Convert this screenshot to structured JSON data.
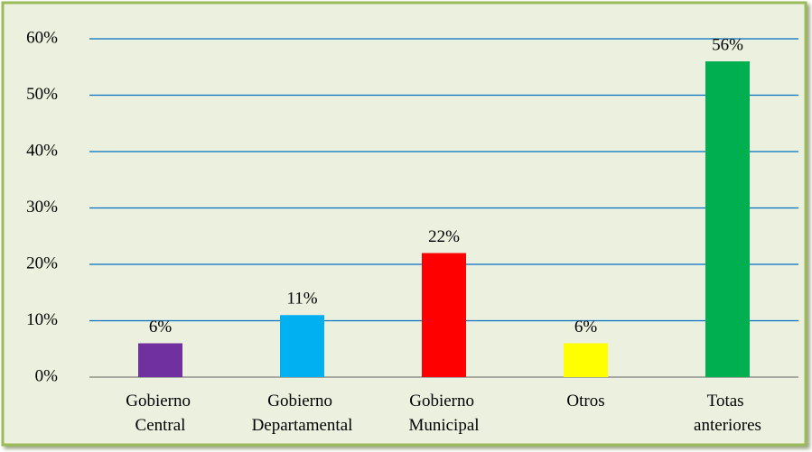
{
  "chart_data": {
    "type": "bar",
    "categories": [
      "Gobierno Central",
      "Gobierno Departamental",
      "Gobierno Municipal",
      "Otros",
      "Totas anteriores"
    ],
    "values": [
      6,
      11,
      22,
      6,
      56
    ],
    "value_labels": [
      "6%",
      "11%",
      "22%",
      "6%",
      "56%"
    ],
    "colors": [
      "#7030a0",
      "#00b0f0",
      "#ff0000",
      "#ffff00",
      "#00b050"
    ],
    "ylim": [
      0,
      60
    ],
    "yticks": [
      {
        "value": 0,
        "label": "0%"
      },
      {
        "value": 10,
        "label": "10%"
      },
      {
        "value": 20,
        "label": "20%"
      },
      {
        "value": 30,
        "label": "30%"
      },
      {
        "value": 40,
        "label": "40%"
      },
      {
        "value": 50,
        "label": "50%"
      },
      {
        "value": 60,
        "label": "60%"
      }
    ],
    "grid": true
  }
}
